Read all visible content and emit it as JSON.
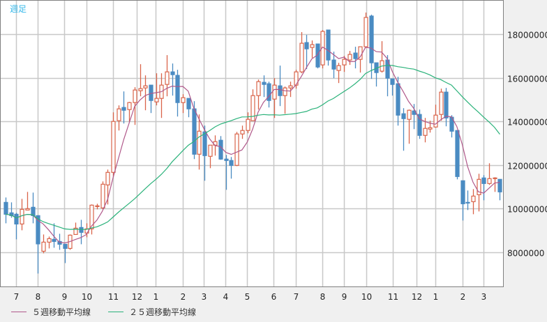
{
  "chart_data": {
    "type": "candlestick",
    "title": "週足",
    "ylim": [
      6432000,
      19568000
    ],
    "yticks": [
      8000000,
      10000000,
      12000000,
      14000000,
      16000000,
      18000000
    ],
    "ytick_labels": [
      "8000000",
      "10000000",
      "12000000",
      "14000000",
      "16000000",
      "18000000"
    ],
    "xticks": [
      {
        "label": "7",
        "index": 2
      },
      {
        "label": "8",
        "index": 6
      },
      {
        "label": "9",
        "index": 10.9
      },
      {
        "label": "10",
        "index": 15
      },
      {
        "label": "11",
        "index": 20
      },
      {
        "label": "12",
        "index": 24.4
      },
      {
        "label": "1",
        "index": 27.9
      },
      {
        "label": "2",
        "index": 33
      },
      {
        "label": "3",
        "index": 36.9
      },
      {
        "label": "4",
        "index": 40.9
      },
      {
        "label": "5",
        "index": 44.9
      },
      {
        "label": "6",
        "index": 49.9
      },
      {
        "label": "7",
        "index": 54
      },
      {
        "label": "8",
        "index": 59
      },
      {
        "label": "9",
        "index": 63
      },
      {
        "label": "10",
        "index": 67.1
      },
      {
        "label": "11",
        "index": 72.1
      },
      {
        "label": "12",
        "index": 76.5
      },
      {
        "label": "1",
        "index": 80
      },
      {
        "label": "2",
        "index": 85
      },
      {
        "label": "3",
        "index": 89
      }
    ],
    "grid": true,
    "up_color": "#d9644a",
    "down_color": "#4a8bc2",
    "ohlc": [
      [
        10288000,
        10512000,
        9328000,
        9744000
      ],
      [
        9808000,
        10288000,
        9584000,
        9680000
      ],
      [
        9744000,
        9808000,
        8592000,
        9296000
      ],
      [
        9296000,
        10448000,
        9008000,
        9968000
      ],
      [
        9936000,
        10768000,
        9936000,
        10000000
      ],
      [
        10064000,
        10736000,
        9328000,
        9680000
      ],
      [
        9680000,
        9680000,
        7024000,
        8384000
      ],
      [
        8048000,
        8816000,
        7952000,
        8464000
      ],
      [
        8464000,
        8720000,
        8176000,
        8624000
      ],
      [
        8592000,
        9328000,
        8208000,
        8496000
      ],
      [
        8496000,
        8848000,
        8112000,
        8368000
      ],
      [
        8368000,
        8368000,
        7504000,
        8176000
      ],
      [
        8176000,
        8816000,
        8112000,
        8784000
      ],
      [
        8816000,
        9360000,
        8816000,
        9104000
      ],
      [
        9136000,
        9488000,
        8368000,
        8912000
      ],
      [
        8880000,
        9328000,
        8688000,
        9072000
      ],
      [
        9072000,
        10192000,
        8816000,
        10160000
      ],
      [
        10096000,
        10224000,
        9968000,
        10128000
      ],
      [
        10032000,
        11248000,
        9968000,
        11120000
      ],
      [
        11088000,
        11792000,
        10192000,
        11664000
      ],
      [
        11664000,
        14416000,
        11472000,
        14000000
      ],
      [
        14032000,
        14736000,
        13584000,
        14576000
      ],
      [
        14640000,
        15376000,
        13904000,
        14512000
      ],
      [
        14544000,
        14896000,
        13968000,
        14864000
      ],
      [
        14864000,
        15568000,
        13840000,
        15440000
      ],
      [
        15408000,
        16624000,
        15152000,
        15504000
      ],
      [
        15536000,
        16112000,
        14512000,
        15632000
      ],
      [
        15664000,
        15664000,
        14384000,
        14960000
      ],
      [
        14896000,
        16208000,
        14736000,
        15056000
      ],
      [
        15056000,
        16208000,
        14160000,
        15664000
      ],
      [
        15696000,
        17040000,
        15152000,
        16272000
      ],
      [
        16272000,
        16656000,
        15184000,
        16144000
      ],
      [
        16112000,
        16368000,
        14224000,
        14864000
      ],
      [
        14864000,
        15248000,
        14384000,
        15088000
      ],
      [
        15056000,
        15056000,
        14192000,
        14576000
      ],
      [
        14576000,
        14928000,
        12272000,
        12496000
      ],
      [
        12496000,
        14320000,
        11792000,
        13552000
      ],
      [
        13520000,
        13808000,
        11280000,
        12432000
      ],
      [
        12400000,
        12912000,
        11856000,
        12912000
      ],
      [
        12912000,
        13360000,
        12432000,
        13072000
      ],
      [
        13136000,
        13328000,
        12240000,
        12272000
      ],
      [
        12272000,
        12464000,
        10864000,
        12208000
      ],
      [
        12208000,
        12368000,
        11376000,
        11984000
      ],
      [
        11984000,
        13520000,
        11952000,
        13424000
      ],
      [
        13424000,
        13808000,
        13200000,
        13584000
      ],
      [
        13584000,
        14416000,
        13456000,
        14096000
      ],
      [
        14032000,
        15472000,
        14032000,
        15184000
      ],
      [
        15184000,
        15920000,
        14544000,
        15824000
      ],
      [
        15792000,
        16112000,
        15120000,
        15696000
      ],
      [
        15728000,
        15824000,
        14640000,
        14960000
      ],
      [
        15024000,
        15984000,
        14160000,
        15664000
      ],
      [
        15632000,
        16560000,
        14704000,
        15184000
      ],
      [
        15184000,
        15600000,
        14352000,
        15536000
      ],
      [
        15536000,
        15824000,
        15120000,
        15632000
      ],
      [
        15664000,
        16368000,
        15504000,
        16272000
      ],
      [
        16272000,
        18096000,
        16208000,
        17584000
      ],
      [
        17616000,
        17968000,
        16400000,
        17328000
      ],
      [
        17392000,
        17712000,
        16912000,
        17520000
      ],
      [
        17552000,
        17552000,
        16432000,
        16496000
      ],
      [
        16592000,
        18192000,
        16432000,
        18128000
      ],
      [
        18192000,
        18192000,
        16560000,
        16816000
      ],
      [
        16816000,
        17200000,
        15984000,
        16400000
      ],
      [
        16336000,
        16688000,
        15760000,
        16560000
      ],
      [
        16592000,
        17008000,
        16272000,
        16848000
      ],
      [
        16816000,
        17232000,
        16592000,
        17072000
      ],
      [
        17136000,
        17424000,
        16432000,
        16880000
      ],
      [
        16848000,
        17424000,
        16240000,
        17424000
      ],
      [
        17424000,
        18992000,
        17392000,
        18768000
      ],
      [
        18832000,
        18896000,
        15952000,
        16688000
      ],
      [
        16688000,
        16688000,
        15600000,
        16240000
      ],
      [
        16304000,
        17680000,
        16240000,
        16784000
      ],
      [
        16816000,
        17040000,
        15152000,
        15984000
      ],
      [
        15952000,
        15952000,
        15184000,
        15696000
      ],
      [
        15728000,
        16048000,
        13808000,
        14288000
      ],
      [
        14352000,
        14608000,
        12656000,
        14128000
      ],
      [
        14096000,
        14544000,
        12976000,
        14512000
      ],
      [
        14480000,
        14800000,
        13648000,
        14320000
      ],
      [
        14320000,
        14544000,
        13200000,
        13360000
      ],
      [
        13360000,
        14160000,
        13040000,
        13680000
      ],
      [
        13648000,
        14032000,
        13488000,
        13712000
      ],
      [
        13744000,
        14768000,
        13712000,
        14288000
      ],
      [
        14320000,
        15504000,
        14032000,
        15344000
      ],
      [
        15344000,
        15536000,
        13776000,
        14160000
      ],
      [
        14192000,
        14288000,
        13264000,
        13552000
      ],
      [
        13584000,
        13584000,
        11344000,
        11472000
      ],
      [
        11280000,
        11280000,
        9456000,
        10224000
      ],
      [
        10288000,
        10832000,
        9936000,
        10256000
      ],
      [
        10320000,
        10896000,
        9744000,
        10576000
      ],
      [
        10640000,
        11600000,
        9872000,
        11344000
      ],
      [
        11408000,
        11536000,
        10384000,
        11152000
      ],
      [
        11152000,
        12080000,
        11088000,
        11376000
      ],
      [
        11376000,
        11440000,
        10768000,
        11408000
      ],
      [
        11344000,
        11344000,
        10384000,
        10768000
      ]
    ],
    "series": [
      {
        "name": "５週移動平均線",
        "period": 5,
        "color": "#b0588a"
      },
      {
        "name": "２５週移動平均線",
        "period": 25,
        "color": "#2ab27a"
      }
    ],
    "legend": "bottom-left"
  }
}
